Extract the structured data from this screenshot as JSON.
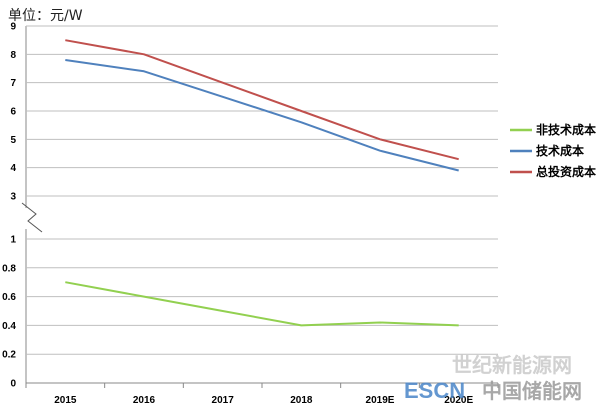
{
  "chart_data": {
    "type": "line",
    "unit_label": "单位：元/W",
    "categories": [
      "2015",
      "2016",
      "2017",
      "2018",
      "2019E",
      "2020E"
    ],
    "axis_break": true,
    "upper_panel": {
      "ylim": [
        3,
        9
      ],
      "yticks": [
        "3",
        "4",
        "5",
        "6",
        "7",
        "8",
        "9"
      ]
    },
    "lower_panel": {
      "ylim": [
        0,
        1
      ],
      "yticks": [
        "0",
        "0.2",
        "0.4",
        "0.6",
        "0.8",
        "1"
      ]
    },
    "series": [
      {
        "name": "非技术成本",
        "color": "#92d050",
        "panel": "lower",
        "values": [
          0.7,
          0.6,
          0.5,
          0.4,
          0.42,
          0.4
        ]
      },
      {
        "name": "技术成本",
        "color": "#4f81bd",
        "panel": "upper",
        "values": [
          7.8,
          7.4,
          6.5,
          5.6,
          4.6,
          3.9
        ]
      },
      {
        "name": "总投资成本",
        "color": "#c0504d",
        "panel": "upper",
        "values": [
          8.5,
          8.0,
          7.0,
          6.0,
          5.0,
          4.3
        ]
      }
    ],
    "legend_position": "right",
    "grid": true
  },
  "watermark": {
    "line1": "世纪新能源网",
    "brand_left": "ESCN",
    "brand_right": "中国储能网"
  }
}
